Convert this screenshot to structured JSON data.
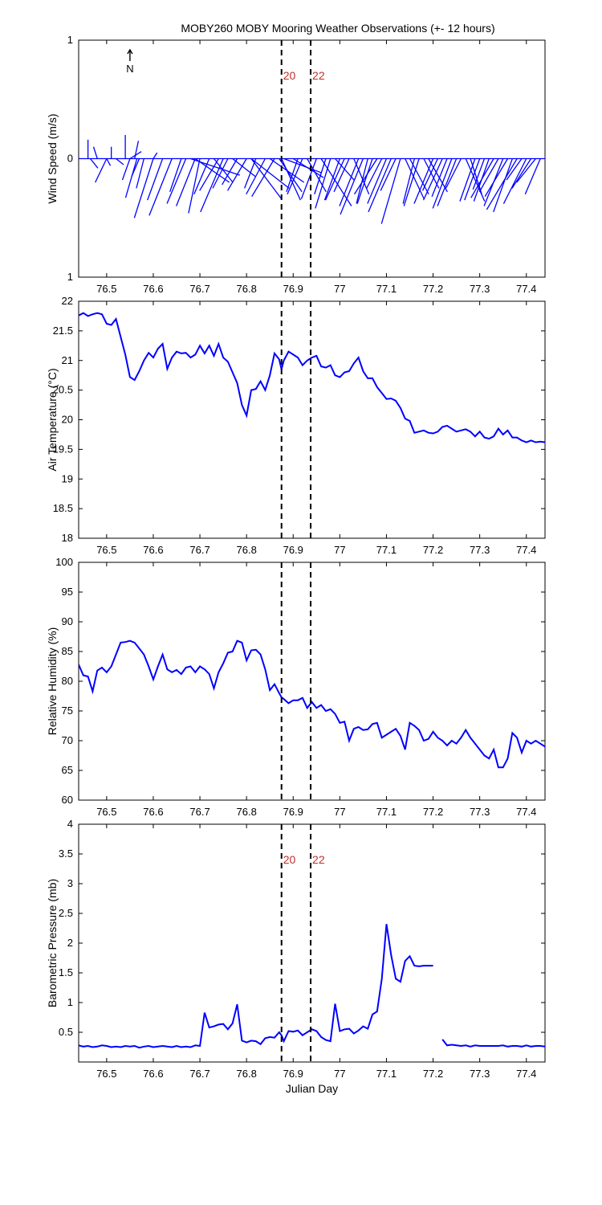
{
  "title": "MOBY260 MOBY Mooring Weather Observations (+- 12 hours)",
  "north_label": "N",
  "colors": {
    "series": "#0000ff",
    "marker_text": "#c0302a",
    "axis": "#000000"
  },
  "markers": [
    {
      "x": 76.875,
      "label": "20"
    },
    {
      "x": 76.9375,
      "label": "22"
    }
  ],
  "chart_data": [
    {
      "type": "vector",
      "ylabel": "Wind Speed (m/s)",
      "xlabel": "Julian Day",
      "xlim": [
        76.44,
        77.44
      ],
      "ylim": [
        -1,
        1
      ],
      "yticks": [
        1,
        0,
        1
      ],
      "xticks": [
        76.5,
        76.6,
        76.7,
        76.8,
        76.9,
        77,
        77.1,
        77.2,
        77.3,
        77.4
      ],
      "markers_labeled": true,
      "vectors": [
        [
          76.46,
          0.0,
          0.16
        ],
        [
          76.465,
          0.02,
          -0.08
        ],
        [
          76.48,
          -0.01,
          0.1
        ],
        [
          76.5,
          0.01,
          -0.06
        ],
        [
          76.5,
          -0.03,
          -0.2
        ],
        [
          76.51,
          0.0,
          0.1
        ],
        [
          76.52,
          0.02,
          -0.05
        ],
        [
          76.54,
          0.0,
          0.2
        ],
        [
          76.55,
          0.03,
          0.06
        ],
        [
          76.55,
          -0.02,
          -0.18
        ],
        [
          76.56,
          0.01,
          0.15
        ],
        [
          76.565,
          -0.03,
          -0.33
        ],
        [
          76.57,
          -0.02,
          -0.15
        ],
        [
          76.58,
          -0.02,
          -0.25
        ],
        [
          76.6,
          0.01,
          0.05
        ],
        [
          76.6,
          -0.05,
          -0.5
        ],
        [
          76.62,
          -0.04,
          -0.35
        ],
        [
          76.64,
          -0.06,
          -0.48
        ],
        [
          76.66,
          -0.03,
          -0.28
        ],
        [
          76.67,
          -0.05,
          -0.38
        ],
        [
          76.68,
          0.13,
          -0.14
        ],
        [
          76.69,
          0.09,
          -0.2
        ],
        [
          76.69,
          -0.05,
          -0.4
        ],
        [
          76.7,
          -0.03,
          -0.46
        ],
        [
          76.72,
          -0.04,
          -0.3
        ],
        [
          76.73,
          0.05,
          -0.2
        ],
        [
          76.74,
          -0.05,
          -0.27
        ],
        [
          76.75,
          -0.06,
          -0.45
        ],
        [
          76.76,
          -0.04,
          -0.25
        ],
        [
          76.77,
          0.06,
          -0.15
        ],
        [
          76.78,
          -0.04,
          -0.22
        ],
        [
          76.8,
          -0.05,
          -0.27
        ],
        [
          76.81,
          0.1,
          -0.25
        ],
        [
          76.81,
          0.08,
          -0.34
        ],
        [
          76.82,
          -0.03,
          -0.25
        ],
        [
          76.84,
          -0.05,
          -0.3
        ],
        [
          76.85,
          0.09,
          -0.2
        ],
        [
          76.86,
          -0.06,
          -0.32
        ],
        [
          76.87,
          0.06,
          -0.28
        ],
        [
          76.875,
          0.05,
          -0.35
        ],
        [
          76.88,
          0.1,
          -0.12
        ],
        [
          76.9,
          0.08,
          -0.16
        ],
        [
          76.91,
          -0.03,
          -0.28
        ],
        [
          76.92,
          -0.04,
          -0.3
        ],
        [
          76.93,
          0.05,
          -0.28
        ],
        [
          76.95,
          -0.04,
          -0.34
        ],
        [
          76.96,
          0.08,
          -0.4
        ],
        [
          76.97,
          -0.03,
          -0.3
        ],
        [
          76.98,
          -0.04,
          -0.42
        ],
        [
          76.99,
          0.05,
          -0.18
        ],
        [
          77.0,
          -0.04,
          -0.35
        ],
        [
          77.01,
          -0.05,
          -0.35
        ],
        [
          77.02,
          -0.04,
          -0.28
        ],
        [
          77.03,
          0.04,
          -0.3
        ],
        [
          77.04,
          -0.05,
          -0.4
        ],
        [
          77.05,
          -0.06,
          -0.47
        ],
        [
          77.06,
          -0.03,
          -0.38
        ],
        [
          77.07,
          -0.04,
          -0.38
        ],
        [
          77.08,
          -0.06,
          -0.3
        ],
        [
          77.09,
          -0.04,
          -0.25
        ],
        [
          77.1,
          -0.05,
          -0.38
        ],
        [
          77.11,
          -0.06,
          -0.45
        ],
        [
          77.12,
          -0.04,
          -0.27
        ],
        [
          77.13,
          -0.05,
          -0.55
        ],
        [
          77.14,
          0.05,
          -0.34
        ],
        [
          77.15,
          0.05,
          -0.3
        ],
        [
          77.16,
          -0.03,
          -0.38
        ],
        [
          77.17,
          -0.04,
          -0.4
        ],
        [
          77.18,
          0.04,
          -0.25
        ],
        [
          77.19,
          0.05,
          -0.28
        ],
        [
          77.2,
          -0.05,
          -0.38
        ],
        [
          77.21,
          -0.04,
          -0.27
        ],
        [
          77.22,
          -0.05,
          -0.35
        ],
        [
          77.23,
          -0.04,
          -0.32
        ],
        [
          77.24,
          -0.05,
          -0.42
        ],
        [
          77.25,
          -0.05,
          -0.4
        ],
        [
          77.26,
          -0.04,
          -0.25
        ],
        [
          77.27,
          0.05,
          -0.36
        ],
        [
          77.28,
          0.03,
          -0.3
        ],
        [
          77.29,
          -0.04,
          -0.36
        ],
        [
          77.3,
          -0.04,
          -0.35
        ],
        [
          77.31,
          -0.03,
          -0.26
        ],
        [
          77.32,
          -0.04,
          -0.36
        ],
        [
          77.33,
          -0.06,
          -0.33
        ],
        [
          77.34,
          -0.05,
          -0.28
        ],
        [
          77.35,
          -0.05,
          -0.4
        ],
        [
          77.36,
          -0.06,
          -0.32
        ],
        [
          77.37,
          -0.05,
          -0.45
        ],
        [
          77.38,
          -0.08,
          -0.43
        ],
        [
          77.39,
          -0.04,
          -0.18
        ],
        [
          77.4,
          -0.06,
          -0.38
        ],
        [
          77.41,
          -0.05,
          -0.25
        ],
        [
          77.42,
          -0.05,
          -0.2
        ],
        [
          77.43,
          -0.04,
          -0.3
        ]
      ]
    },
    {
      "type": "line",
      "ylabel": "Air Temperature (°C)",
      "xlim": [
        76.44,
        77.44
      ],
      "ylim": [
        18,
        22
      ],
      "yticks": [
        18,
        18.5,
        19,
        19.5,
        20,
        20.5,
        21,
        21.5,
        22
      ],
      "xticks": [
        76.5,
        76.6,
        76.7,
        76.8,
        76.9,
        77,
        77.1,
        77.2,
        77.3,
        77.4
      ],
      "markers_labeled": false,
      "x": [
        76.44,
        76.45,
        76.46,
        76.47,
        76.48,
        76.49,
        76.5,
        76.51,
        76.52,
        76.53,
        76.54,
        76.55,
        76.56,
        76.57,
        76.58,
        76.59,
        76.6,
        76.61,
        76.62,
        76.63,
        76.64,
        76.65,
        76.66,
        76.67,
        76.68,
        76.69,
        76.7,
        76.71,
        76.72,
        76.73,
        76.74,
        76.75,
        76.76,
        76.77,
        76.78,
        76.79,
        76.8,
        76.81,
        76.82,
        76.83,
        76.84,
        76.85,
        76.86,
        76.87,
        76.875,
        76.88,
        76.89,
        76.9,
        76.91,
        76.92,
        76.93,
        76.94,
        76.95,
        76.96,
        76.97,
        76.98,
        76.99,
        77.0,
        77.01,
        77.02,
        77.03,
        77.04,
        77.05,
        77.06,
        77.07,
        77.08,
        77.09,
        77.1,
        77.11,
        77.12,
        77.13,
        77.14,
        77.15,
        77.16,
        77.17,
        77.18,
        77.19,
        77.2,
        77.21,
        77.22,
        77.23,
        77.24,
        77.25,
        77.26,
        77.27,
        77.28,
        77.29,
        77.3,
        77.31,
        77.32,
        77.33,
        77.34,
        77.35,
        77.36,
        77.37,
        77.38,
        77.39,
        77.4,
        77.41,
        77.42,
        77.43,
        77.44
      ],
      "y": [
        21.76,
        21.8,
        21.75,
        21.78,
        21.8,
        21.78,
        21.62,
        21.6,
        21.7,
        21.4,
        21.1,
        20.72,
        20.67,
        20.82,
        21.0,
        21.13,
        21.05,
        21.2,
        21.28,
        20.86,
        21.05,
        21.15,
        21.12,
        21.13,
        21.05,
        21.1,
        21.25,
        21.12,
        21.25,
        21.08,
        21.28,
        21.05,
        20.98,
        20.8,
        20.62,
        20.25,
        20.07,
        20.5,
        20.52,
        20.65,
        20.5,
        20.75,
        21.12,
        21.02,
        20.85,
        21.0,
        21.15,
        21.1,
        21.05,
        20.92,
        21.0,
        21.05,
        21.08,
        20.9,
        20.88,
        20.92,
        20.75,
        20.72,
        20.8,
        20.82,
        20.95,
        21.05,
        20.82,
        20.7,
        20.7,
        20.55,
        20.45,
        20.35,
        20.36,
        20.32,
        20.2,
        20.02,
        19.98,
        19.78,
        19.8,
        19.82,
        19.78,
        19.77,
        19.8,
        19.88,
        19.9,
        19.85,
        19.8,
        19.82,
        19.84,
        19.8,
        19.72,
        19.8,
        19.7,
        19.68,
        19.72,
        19.85,
        19.75,
        19.82,
        19.7,
        19.7,
        19.65,
        19.62,
        19.65,
        19.62,
        19.63,
        19.62
      ],
      "series": [
        {
          "values_in": "y"
        }
      ]
    },
    {
      "type": "line",
      "ylabel": "Relative Humidity (%)",
      "xlim": [
        76.44,
        77.44
      ],
      "ylim": [
        60,
        100
      ],
      "yticks": [
        60,
        65,
        70,
        75,
        80,
        85,
        90,
        95,
        100
      ],
      "xticks": [
        76.5,
        76.6,
        76.7,
        76.8,
        76.9,
        77,
        77.1,
        77.2,
        77.3,
        77.4
      ],
      "markers_labeled": false,
      "x": [
        76.44,
        76.45,
        76.46,
        76.47,
        76.48,
        76.49,
        76.5,
        76.51,
        76.52,
        76.53,
        76.54,
        76.55,
        76.56,
        76.57,
        76.58,
        76.59,
        76.6,
        76.61,
        76.62,
        76.63,
        76.64,
        76.65,
        76.66,
        76.67,
        76.68,
        76.69,
        76.7,
        76.71,
        76.72,
        76.73,
        76.74,
        76.75,
        76.76,
        76.77,
        76.78,
        76.79,
        76.8,
        76.81,
        76.82,
        76.83,
        76.84,
        76.85,
        76.86,
        76.87,
        76.875,
        76.88,
        76.89,
        76.9,
        76.91,
        76.92,
        76.93,
        76.94,
        76.95,
        76.96,
        76.97,
        76.98,
        76.99,
        77.0,
        77.01,
        77.02,
        77.03,
        77.04,
        77.05,
        77.06,
        77.07,
        77.08,
        77.09,
        77.1,
        77.11,
        77.12,
        77.13,
        77.14,
        77.15,
        77.16,
        77.17,
        77.18,
        77.19,
        77.2,
        77.21,
        77.22,
        77.23,
        77.24,
        77.25,
        77.26,
        77.27,
        77.28,
        77.29,
        77.3,
        77.31,
        77.32,
        77.33,
        77.34,
        77.35,
        77.36,
        77.37,
        77.38,
        77.39,
        77.4,
        77.41,
        77.42,
        77.43,
        77.44
      ],
      "y": [
        82.8,
        81.0,
        80.8,
        78.3,
        81.8,
        82.3,
        81.5,
        82.5,
        84.5,
        86.5,
        86.6,
        86.8,
        86.5,
        85.5,
        84.5,
        82.5,
        80.3,
        82.5,
        84.5,
        82.0,
        81.5,
        81.9,
        81.2,
        82.3,
        82.5,
        81.5,
        82.5,
        82.0,
        81.2,
        78.8,
        81.5,
        83.0,
        84.8,
        85.0,
        86.8,
        86.5,
        83.5,
        85.2,
        85.3,
        84.5,
        82.0,
        78.5,
        79.5,
        78.0,
        77.3,
        77.0,
        76.3,
        76.8,
        76.8,
        77.2,
        75.5,
        76.5,
        75.5,
        76.0,
        75.0,
        75.3,
        74.5,
        73.0,
        73.2,
        70.0,
        72.0,
        72.3,
        71.8,
        71.9,
        72.8,
        73.0,
        70.5,
        71.0,
        71.5,
        72.0,
        70.8,
        68.5,
        73.0,
        72.5,
        71.8,
        70.0,
        70.3,
        71.5,
        70.5,
        70.0,
        69.2,
        70.0,
        69.5,
        70.5,
        71.8,
        70.5,
        69.5,
        68.5,
        67.5,
        67.0,
        68.5,
        65.5,
        65.5,
        67.0,
        71.3,
        70.5,
        68.0,
        70.0,
        69.5,
        70.0,
        69.5,
        69.0
      ],
      "series": [
        {
          "values_in": "y"
        }
      ]
    },
    {
      "type": "line",
      "ylabel": "Barometric Pressure (mb)",
      "xlabel": "Julian Day",
      "xlim": [
        76.44,
        77.44
      ],
      "ylim": [
        0,
        4
      ],
      "yticks": [
        0.5,
        1,
        1.5,
        2,
        2.5,
        3,
        3.5,
        4
      ],
      "xticks": [
        76.5,
        76.6,
        76.7,
        76.8,
        76.9,
        77,
        77.1,
        77.2,
        77.3,
        77.4
      ],
      "markers_labeled": true,
      "segments": [
        {
          "x": [
            76.44,
            76.45,
            76.46,
            76.47,
            76.48,
            76.49,
            76.5,
            76.51,
            76.52,
            76.53,
            76.54,
            76.55,
            76.56,
            76.57,
            76.58,
            76.59,
            76.6,
            76.61,
            76.62,
            76.63,
            76.64,
            76.65,
            76.66,
            76.67,
            76.68,
            76.69,
            76.7,
            76.71,
            76.72,
            76.73,
            76.74,
            76.75,
            76.76,
            76.77,
            76.78,
            76.79,
            76.8,
            76.81,
            76.82,
            76.83,
            76.84,
            76.85,
            76.86,
            76.87,
            76.875,
            76.88,
            76.89,
            76.9,
            76.91,
            76.92,
            76.93,
            76.94,
            76.95,
            76.96,
            76.97,
            76.98,
            76.99,
            77.0,
            77.01,
            77.02,
            77.03,
            77.04,
            77.05,
            77.06,
            77.07,
            77.08,
            77.09,
            77.1,
            77.11,
            77.12,
            77.13,
            77.14,
            77.15,
            77.16,
            77.17,
            77.18,
            77.19,
            77.2
          ],
          "y": [
            0.28,
            0.26,
            0.27,
            0.25,
            0.26,
            0.28,
            0.27,
            0.25,
            0.26,
            0.25,
            0.27,
            0.26,
            0.27,
            0.24,
            0.26,
            0.27,
            0.25,
            0.26,
            0.27,
            0.26,
            0.25,
            0.27,
            0.25,
            0.26,
            0.25,
            0.28,
            0.27,
            0.83,
            0.58,
            0.6,
            0.63,
            0.64,
            0.55,
            0.65,
            0.97,
            0.36,
            0.33,
            0.36,
            0.35,
            0.3,
            0.4,
            0.42,
            0.41,
            0.5,
            0.45,
            0.35,
            0.52,
            0.51,
            0.53,
            0.45,
            0.5,
            0.55,
            0.52,
            0.42,
            0.37,
            0.35,
            0.98,
            0.52,
            0.55,
            0.56,
            0.48,
            0.53,
            0.6,
            0.56,
            0.8,
            0.85,
            1.4,
            2.32,
            1.8,
            1.4,
            1.35,
            1.7,
            1.78,
            1.62,
            1.61,
            1.62,
            1.62,
            1.62
          ]
        },
        {
          "x": [
            77.22,
            77.23,
            77.24,
            77.25,
            77.26,
            77.27,
            77.28,
            77.29,
            77.3,
            77.31,
            77.32,
            77.33,
            77.34,
            77.35,
            77.36,
            77.37,
            77.38,
            77.39,
            77.4,
            77.41,
            77.42,
            77.43,
            77.44
          ],
          "y": [
            0.38,
            0.28,
            0.29,
            0.28,
            0.27,
            0.28,
            0.26,
            0.28,
            0.27,
            0.27,
            0.27,
            0.27,
            0.27,
            0.28,
            0.26,
            0.27,
            0.27,
            0.26,
            0.28,
            0.26,
            0.27,
            0.27,
            0.26
          ]
        }
      ]
    }
  ]
}
